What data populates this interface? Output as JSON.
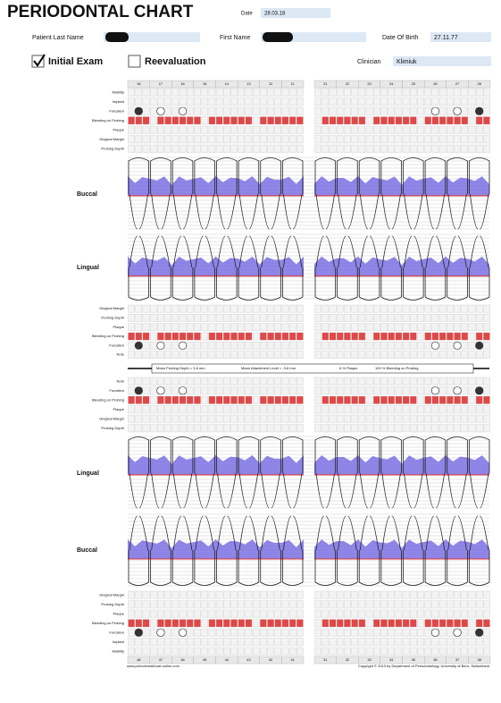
{
  "header": {
    "title": "PERIODONTAL CHART",
    "date_label": "Date",
    "date": "28.03.18",
    "last_name_label": "Patient Last Name",
    "first_name_label": "First Name",
    "dob_label": "Date Of Birth",
    "dob": "27.11.77",
    "initial_exam": "Initial Exam",
    "reevaluation": "Reevaluation",
    "clinician_label": "Clinician",
    "clinician": "Klimiuk"
  },
  "upper": {
    "teeth": [
      "18",
      "17",
      "16",
      "15",
      "14",
      "13",
      "12",
      "11",
      "21",
      "22",
      "23",
      "24",
      "25",
      "26",
      "27",
      "28"
    ],
    "rows_top": [
      "Mobility",
      "Implant",
      "Furcation",
      "Bleeding on Probing",
      "Plaque",
      "Gingival Margin",
      "Probing Depth"
    ],
    "buccal": "Buccal",
    "lingual": "Lingual",
    "rows_bottom": [
      "Gingival Margin",
      "Probing Depth",
      "Plaque",
      "Bleeding on Probing",
      "Furcation",
      "Note"
    ]
  },
  "summary": [
    "Mean Probing Depth = 3.8 mm",
    "Mean Attachment Level = -3.8 mm",
    "6 % Plaque",
    "100 % Bleeding on Probing"
  ],
  "lower": {
    "rows_top": [
      "Note",
      "Furcation",
      "Bleeding on Probing",
      "Plaque",
      "Gingival Margin",
      "Probing Depth"
    ],
    "lingual": "Lingual",
    "buccal": "Buccal",
    "rows_bottom": [
      "Gingival Margin",
      "Probing Depth",
      "Plaque",
      "Bleeding on Probing",
      "Furcation",
      "Implant",
      "Mobility"
    ],
    "teeth": [
      "48",
      "47",
      "46",
      "45",
      "44",
      "43",
      "42",
      "41",
      "31",
      "32",
      "33",
      "34",
      "35",
      "36",
      "37",
      "38"
    ]
  },
  "footer": {
    "website": "www.periodontalchart-online.com",
    "copyright": "Copyright © 2013 by Department of Periodontology, University of Bern, Switzerland"
  }
}
